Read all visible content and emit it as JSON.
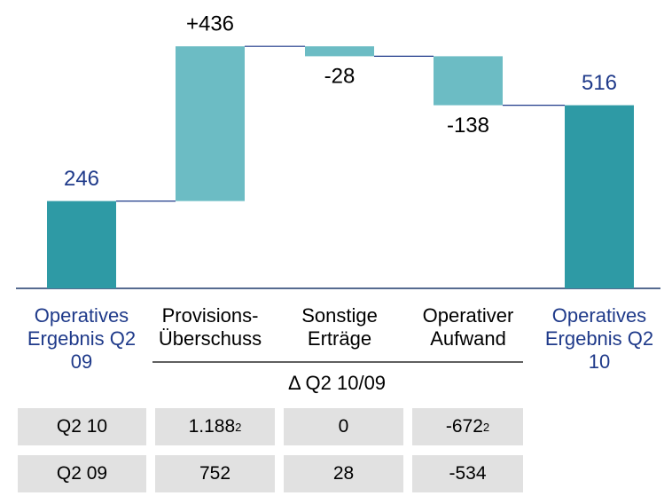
{
  "chart_data": {
    "type": "waterfall",
    "categories": [
      "Operatives Ergebnis Q2 09",
      "Provisions-Überschuss",
      "Sonstige Erträge",
      "Operativer Aufwand",
      "Operatives Ergebnis Q2 10"
    ],
    "values": [
      246,
      436,
      -28,
      -138,
      516
    ],
    "value_labels": [
      "246",
      "+436",
      "-28",
      "-138",
      "516"
    ],
    "totals": [
      true,
      false,
      false,
      false,
      true
    ],
    "total_color": "#2e9aa5",
    "delta_color": "#6cbcc4",
    "ylim": [
      0,
      700
    ],
    "group_label": "Δ Q2 10/09"
  },
  "table": {
    "rows": [
      {
        "label": "Q2 10",
        "cells": [
          {
            "text": "1.188",
            "sup": "2"
          },
          {
            "text": "0"
          },
          {
            "text": "-672",
            "sup": "2"
          }
        ]
      },
      {
        "label": "Q2 09",
        "cells": [
          {
            "text": "752"
          },
          {
            "text": "28"
          },
          {
            "text": "-534"
          }
        ]
      }
    ]
  }
}
